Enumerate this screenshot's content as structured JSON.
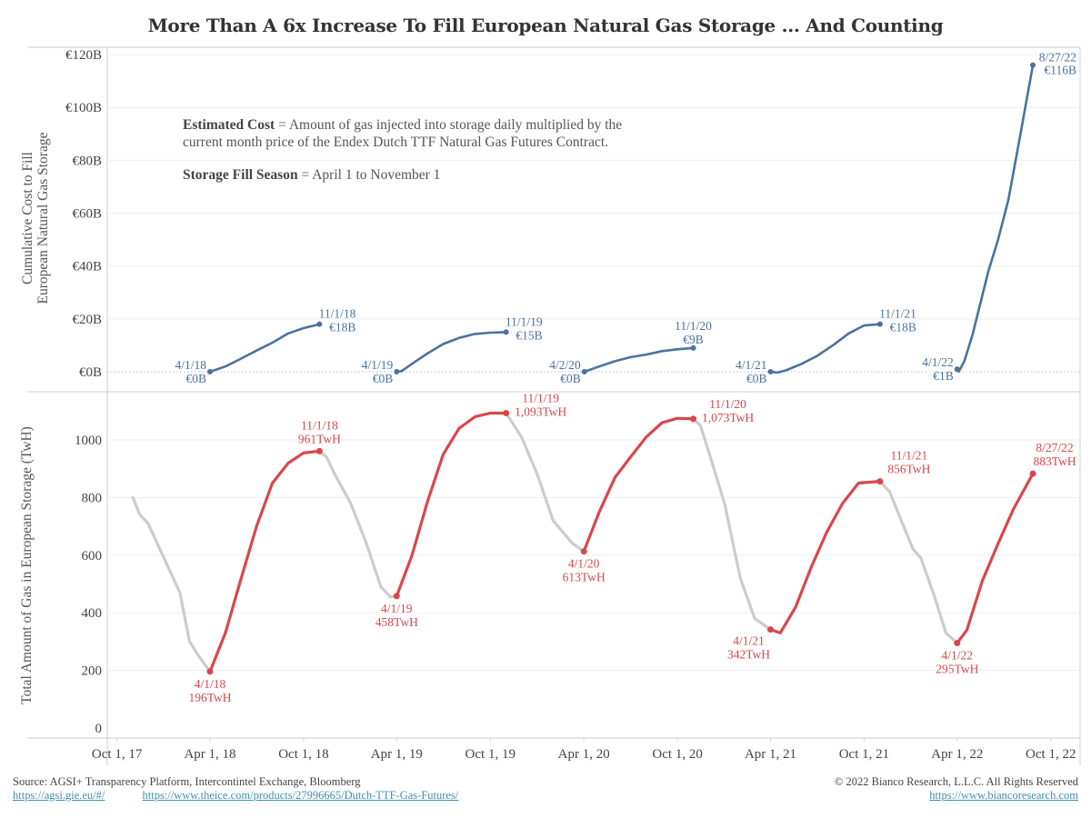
{
  "title": "More Than A 6x Increase To Fill European Natural Gas Storage ... And Counting",
  "notes": {
    "estimated_cost_label": "Estimated Cost",
    "estimated_cost_text": " = Amount of gas injected into storage daily multiplied by the",
    "estimated_cost_text2": "current month price of the Endex Dutch TTF Natural Gas Futures Contract.",
    "fill_season_label": "Storage Fill Season",
    "fill_season_text": " = April 1 to November 1"
  },
  "footer": {
    "source": "Source: AGSI+ Transparency Platform, Intercontintel Exchange, Bloomberg",
    "link1": "https://agsi.gie.eu/#/",
    "link2": "https://www.theice.com/products/27996665/Dutch-TTF-Gas-Futures/",
    "copyright": "© 2022 Bianco Research, L.L.C. All Rights Reserved",
    "link3": "https://www.biancoresearch.com"
  },
  "colors": {
    "cost": "#4a72a0",
    "fill": "#d9474b",
    "drawdown": "#cccccc"
  },
  "chart_data": [
    {
      "type": "line",
      "title": "Cumulative Cost to Fill European Natural Gas Storage",
      "ylabel": "Cumulative Cost to Fill\nEuropean Natural Gas Storage",
      "ylim": [
        0,
        120
      ],
      "yticks": [
        0,
        20,
        40,
        60,
        80,
        100,
        120
      ],
      "ytick_labels": [
        "€0B",
        "€20B",
        "€40B",
        "€60B",
        "€80B",
        "€100B",
        "€120B"
      ],
      "unit": "EUR billions",
      "series": [
        {
          "name": "2018",
          "points": [
            [
              "2018-04-01",
              0
            ],
            [
              "2018-05-01",
              2
            ],
            [
              "2018-06-01",
              5
            ],
            [
              "2018-07-01",
              8
            ],
            [
              "2018-08-01",
              11
            ],
            [
              "2018-09-01",
              14.5
            ],
            [
              "2018-10-01",
              16.5
            ],
            [
              "2018-11-01",
              18
            ]
          ],
          "start_label": [
            "4/1/18",
            "€0B"
          ],
          "end_label": [
            "11/1/18",
            "€18B"
          ]
        },
        {
          "name": "2019",
          "points": [
            [
              "2019-04-01",
              0
            ],
            [
              "2019-04-10",
              0.2
            ],
            [
              "2019-05-01",
              3
            ],
            [
              "2019-06-01",
              7
            ],
            [
              "2019-07-01",
              10.5
            ],
            [
              "2019-08-01",
              12.8
            ],
            [
              "2019-09-01",
              14.3
            ],
            [
              "2019-10-01",
              14.8
            ],
            [
              "2019-11-01",
              15
            ]
          ],
          "start_label": [
            "4/1/19",
            "€0B"
          ],
          "end_label": [
            "11/1/19",
            "€15B"
          ]
        },
        {
          "name": "2020",
          "points": [
            [
              "2020-04-02",
              0
            ],
            [
              "2020-05-01",
              2
            ],
            [
              "2020-06-01",
              4
            ],
            [
              "2020-07-01",
              5.5
            ],
            [
              "2020-08-01",
              6.5
            ],
            [
              "2020-09-01",
              7.8
            ],
            [
              "2020-10-01",
              8.5
            ],
            [
              "2020-11-01",
              9
            ]
          ],
          "start_label": [
            "4/2/20",
            "€0B"
          ],
          "end_label": [
            "11/1/20",
            "€9B"
          ]
        },
        {
          "name": "2021",
          "points": [
            [
              "2021-04-01",
              0
            ],
            [
              "2021-04-15",
              -0.3
            ],
            [
              "2021-05-01",
              0.5
            ],
            [
              "2021-06-01",
              3
            ],
            [
              "2021-07-01",
              6
            ],
            [
              "2021-08-01",
              10
            ],
            [
              "2021-09-01",
              14.5
            ],
            [
              "2021-10-01",
              17.5
            ],
            [
              "2021-11-01",
              18
            ]
          ],
          "start_label": [
            "4/1/21",
            "€0B"
          ],
          "end_label": [
            "11/1/21",
            "€18B"
          ]
        },
        {
          "name": "2022",
          "points": [
            [
              "2022-04-01",
              1
            ],
            [
              "2022-04-04",
              0
            ],
            [
              "2022-04-15",
              4
            ],
            [
              "2022-05-01",
              14
            ],
            [
              "2022-06-01",
              38
            ],
            [
              "2022-06-20",
              50
            ],
            [
              "2022-07-10",
              65
            ],
            [
              "2022-08-01",
              88
            ],
            [
              "2022-08-27",
              116
            ]
          ],
          "start_label": [
            "4/1/22",
            "€1B"
          ],
          "end_label": [
            "8/27/22",
            "€116B"
          ]
        }
      ]
    },
    {
      "type": "line",
      "title": "Total Amount of Gas in European Storage",
      "ylabel": "Total Amount of Gas in European Storage (TwH)",
      "ylim": [
        0,
        1130
      ],
      "yticks": [
        0,
        200,
        400,
        600,
        800,
        1000
      ],
      "ytick_labels": [
        "0",
        "200",
        "400",
        "600",
        "800",
        "1000"
      ],
      "unit": "TWh",
      "x_tick_labels": [
        "Oct 1, 17",
        "Apr 1, 18",
        "Oct 1, 18",
        "Apr 1, 19",
        "Oct 1, 19",
        "Apr 1, 20",
        "Oct 1, 20",
        "Apr 1, 21",
        "Oct 1, 21",
        "Apr 1, 22",
        "Oct 1, 22"
      ],
      "x_tick_dates": [
        "2017-10-01",
        "2018-04-01",
        "2018-10-01",
        "2019-04-01",
        "2019-10-01",
        "2020-04-01",
        "2020-10-01",
        "2021-04-01",
        "2021-10-01",
        "2022-04-01",
        "2022-10-01"
      ],
      "series": [
        {
          "name": "drawdown",
          "color_key": "drawdown",
          "segments": [
            [
              [
                "2017-11-01",
                800
              ],
              [
                "2017-11-15",
                740
              ],
              [
                "2017-12-01",
                710
              ],
              [
                "2018-01-01",
                590
              ],
              [
                "2018-02-01",
                470
              ],
              [
                "2018-02-20",
                300
              ],
              [
                "2018-03-10",
                250
              ],
              [
                "2018-04-01",
                196
              ]
            ],
            [
              [
                "2018-11-01",
                961
              ],
              [
                "2018-11-15",
                940
              ],
              [
                "2018-12-01",
                880
              ],
              [
                "2019-01-01",
                780
              ],
              [
                "2019-02-01",
                640
              ],
              [
                "2019-03-01",
                490
              ],
              [
                "2019-03-20",
                455
              ],
              [
                "2019-04-01",
                458
              ]
            ],
            [
              [
                "2019-11-01",
                1093
              ],
              [
                "2019-11-20",
                1040
              ],
              [
                "2019-12-01",
                1010
              ],
              [
                "2020-01-01",
                880
              ],
              [
                "2020-02-01",
                720
              ],
              [
                "2020-03-10",
                640
              ],
              [
                "2020-04-01",
                613
              ]
            ],
            [
              [
                "2020-11-01",
                1073
              ],
              [
                "2020-11-15",
                1050
              ],
              [
                "2020-12-01",
                960
              ],
              [
                "2021-01-01",
                780
              ],
              [
                "2021-02-01",
                520
              ],
              [
                "2021-03-01",
                380
              ],
              [
                "2021-04-01",
                342
              ]
            ],
            [
              [
                "2021-11-01",
                856
              ],
              [
                "2021-11-20",
                820
              ],
              [
                "2021-12-15",
                710
              ],
              [
                "2022-01-05",
                620
              ],
              [
                "2022-01-20",
                590
              ],
              [
                "2022-02-15",
                460
              ],
              [
                "2022-03-10",
                330
              ],
              [
                "2022-04-01",
                295
              ]
            ]
          ]
        },
        {
          "name": "fill season",
          "color_key": "fill",
          "segments": [
            [
              [
                "2018-04-01",
                196
              ],
              [
                "2018-05-01",
                330
              ],
              [
                "2018-06-01",
                520
              ],
              [
                "2018-07-01",
                700
              ],
              [
                "2018-08-01",
                850
              ],
              [
                "2018-09-01",
                920
              ],
              [
                "2018-10-01",
                955
              ],
              [
                "2018-11-01",
                961
              ]
            ],
            [
              [
                "2019-04-01",
                458
              ],
              [
                "2019-05-01",
                600
              ],
              [
                "2019-06-01",
                790
              ],
              [
                "2019-07-01",
                950
              ],
              [
                "2019-08-01",
                1040
              ],
              [
                "2019-09-01",
                1080
              ],
              [
                "2019-10-01",
                1093
              ],
              [
                "2019-11-01",
                1093
              ]
            ],
            [
              [
                "2020-04-01",
                613
              ],
              [
                "2020-05-01",
                750
              ],
              [
                "2020-06-01",
                870
              ],
              [
                "2020-07-01",
                940
              ],
              [
                "2020-08-01",
                1010
              ],
              [
                "2020-09-01",
                1060
              ],
              [
                "2020-10-01",
                1075
              ],
              [
                "2020-11-01",
                1073
              ]
            ],
            [
              [
                "2021-04-01",
                342
              ],
              [
                "2021-04-20",
                330
              ],
              [
                "2021-05-20",
                420
              ],
              [
                "2021-06-20",
                560
              ],
              [
                "2021-07-20",
                680
              ],
              [
                "2021-08-20",
                780
              ],
              [
                "2021-09-20",
                850
              ],
              [
                "2021-11-01",
                856
              ]
            ],
            [
              [
                "2022-04-01",
                295
              ],
              [
                "2022-04-20",
                340
              ],
              [
                "2022-05-20",
                510
              ],
              [
                "2022-06-20",
                640
              ],
              [
                "2022-07-20",
                760
              ],
              [
                "2022-08-27",
                883
              ]
            ]
          ]
        }
      ],
      "annotations": [
        {
          "date": "2018-04-01",
          "value": 196,
          "lines": [
            "4/1/18",
            "196TwH"
          ],
          "pos": "below"
        },
        {
          "date": "2018-11-01",
          "value": 961,
          "lines": [
            "11/1/18",
            "961TwH"
          ],
          "pos": "above"
        },
        {
          "date": "2019-04-01",
          "value": 458,
          "lines": [
            "4/1/19",
            "458TwH"
          ],
          "pos": "below"
        },
        {
          "date": "2019-11-01",
          "value": 1093,
          "lines": [
            "11/1/19",
            "1,093TwH"
          ],
          "pos": "right"
        },
        {
          "date": "2020-04-01",
          "value": 613,
          "lines": [
            "4/1/20",
            "613TwH"
          ],
          "pos": "below"
        },
        {
          "date": "2020-11-01",
          "value": 1073,
          "lines": [
            "11/1/20",
            "1,073TwH"
          ],
          "pos": "right"
        },
        {
          "date": "2021-04-01",
          "value": 342,
          "lines": [
            "4/1/21",
            "342TwH"
          ],
          "pos": "below-left"
        },
        {
          "date": "2021-11-01",
          "value": 856,
          "lines": [
            "11/1/21",
            "856TwH"
          ],
          "pos": "above-right"
        },
        {
          "date": "2022-04-01",
          "value": 295,
          "lines": [
            "4/1/22",
            "295TwH"
          ],
          "pos": "below"
        },
        {
          "date": "2022-08-27",
          "value": 883,
          "lines": [
            "8/27/22",
            "883TwH"
          ],
          "pos": "above"
        }
      ]
    }
  ]
}
